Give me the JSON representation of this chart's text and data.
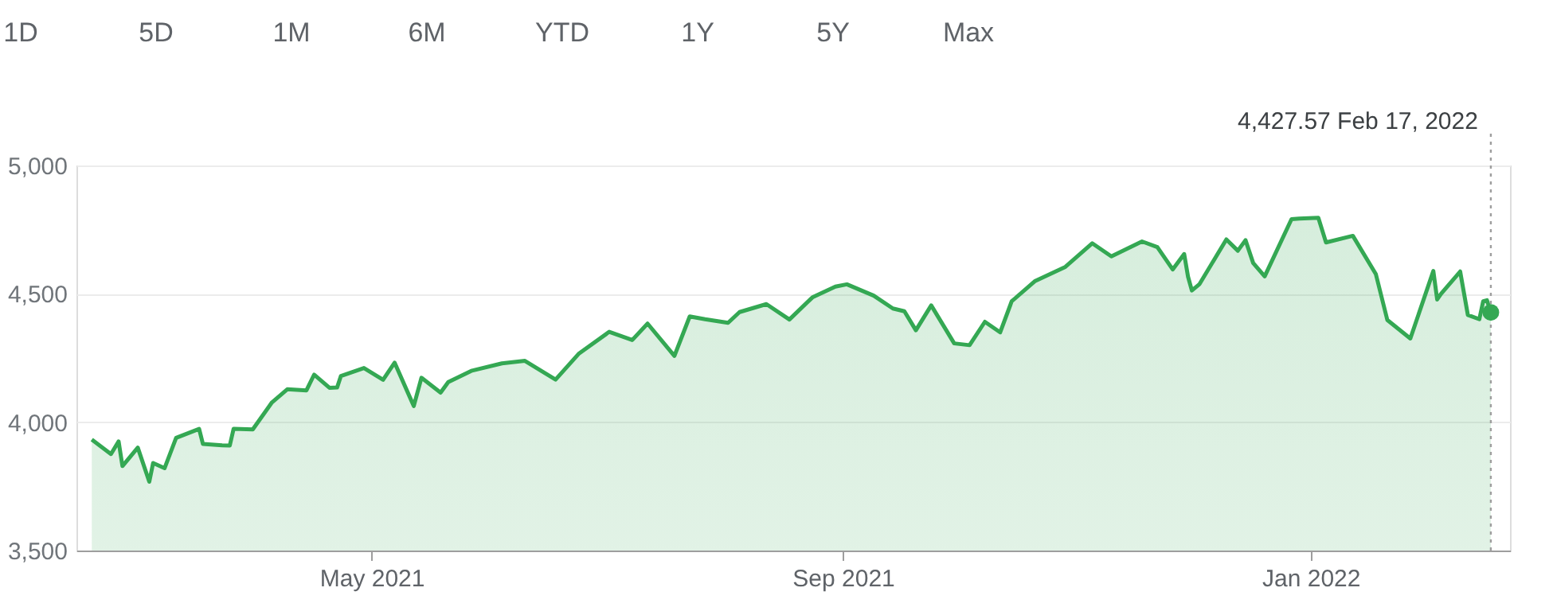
{
  "chart_data": {
    "type": "area",
    "color": "#34a853",
    "x": [
      "2021-02-17",
      "2021-02-22",
      "2021-02-24",
      "2021-02-25",
      "2021-03-01",
      "2021-03-04",
      "2021-03-05",
      "2021-03-08",
      "2021-03-11",
      "2021-03-17",
      "2021-03-18",
      "2021-03-23",
      "2021-03-25",
      "2021-03-26",
      "2021-03-31",
      "2021-04-05",
      "2021-04-09",
      "2021-04-14",
      "2021-04-16",
      "2021-04-20",
      "2021-04-22",
      "2021-04-23",
      "2021-04-29",
      "2021-05-04",
      "2021-05-07",
      "2021-05-12",
      "2021-05-14",
      "2021-05-19",
      "2021-05-21",
      "2021-05-27",
      "2021-06-04",
      "2021-06-10",
      "2021-06-18",
      "2021-06-24",
      "2021-07-02",
      "2021-07-08",
      "2021-07-12",
      "2021-07-19",
      "2021-07-23",
      "2021-07-27",
      "2021-08-02",
      "2021-08-05",
      "2021-08-12",
      "2021-08-18",
      "2021-08-24",
      "2021-08-30",
      "2021-09-02",
      "2021-09-09",
      "2021-09-14",
      "2021-09-17",
      "2021-09-20",
      "2021-09-24",
      "2021-09-30",
      "2021-10-04",
      "2021-10-08",
      "2021-10-12",
      "2021-10-15",
      "2021-10-21",
      "2021-10-29",
      "2021-11-05",
      "2021-11-10",
      "2021-11-18",
      "2021-11-22",
      "2021-11-26",
      "2021-11-29",
      "2021-11-30",
      "2021-12-01",
      "2021-12-03",
      "2021-12-10",
      "2021-12-13",
      "2021-12-15",
      "2021-12-17",
      "2021-12-20",
      "2021-12-27",
      "2021-12-29",
      "2022-01-03",
      "2022-01-05",
      "2022-01-12",
      "2022-01-18",
      "2022-01-21",
      "2022-01-27",
      "2022-02-02",
      "2022-02-03",
      "2022-02-04",
      "2022-02-09",
      "2022-02-11",
      "2022-02-14",
      "2022-02-15",
      "2022-02-16",
      "2022-02-17"
    ],
    "values": [
      3932,
      3876,
      3925,
      3829,
      3901,
      3768,
      3841,
      3821,
      3939,
      3974,
      3915,
      3910,
      3909,
      3974,
      3972,
      4077,
      4128,
      4124,
      4185,
      4134,
      4135,
      4180,
      4211,
      4165,
      4232,
      4063,
      4173,
      4115,
      4156,
      4200,
      4229,
      4239,
      4166,
      4266,
      4352,
      4320,
      4384,
      4258,
      4412,
      4401,
      4387,
      4429,
      4460,
      4400,
      4486,
      4528,
      4537,
      4493,
      4443,
      4432,
      4358,
      4455,
      4307,
      4300,
      4391,
      4350,
      4471,
      4549,
      4605,
      4697,
      4646,
      4704,
      4682,
      4595,
      4655,
      4567,
      4513,
      4538,
      4712,
      4668,
      4709,
      4620,
      4568,
      4791,
      4793,
      4796,
      4700,
      4726,
      4577,
      4398,
      4326,
      4589,
      4478,
      4500,
      4587,
      4418,
      4401,
      4471,
      4475,
      4427.57
    ],
    "xlim": [
      "2021-02-13",
      "2022-02-22"
    ],
    "xticks": [
      {
        "value": "2021-05-01",
        "label": "May 2021"
      },
      {
        "value": "2021-09-01",
        "label": "Sep 2021"
      },
      {
        "value": "2022-01-01",
        "label": "Jan 2022"
      }
    ],
    "ylim": [
      3500,
      5000
    ],
    "yticks": [
      {
        "value": 3500,
        "label": "3,500"
      },
      {
        "value": 4000,
        "label": "4,000"
      },
      {
        "value": 4500,
        "label": "4,500"
      },
      {
        "value": 5000,
        "label": "5,000"
      }
    ],
    "grid": "y",
    "ref_lines": [
      {
        "axis": "x",
        "value": "2022-02-17",
        "line_style": "dotted",
        "color": "#9e9e9e"
      }
    ],
    "annotations": [
      "4,427.57  Feb 17, 2022",
      "1D",
      "5D",
      "1M",
      "6M",
      "YTD",
      "1Y",
      "5Y",
      "Max"
    ]
  }
}
